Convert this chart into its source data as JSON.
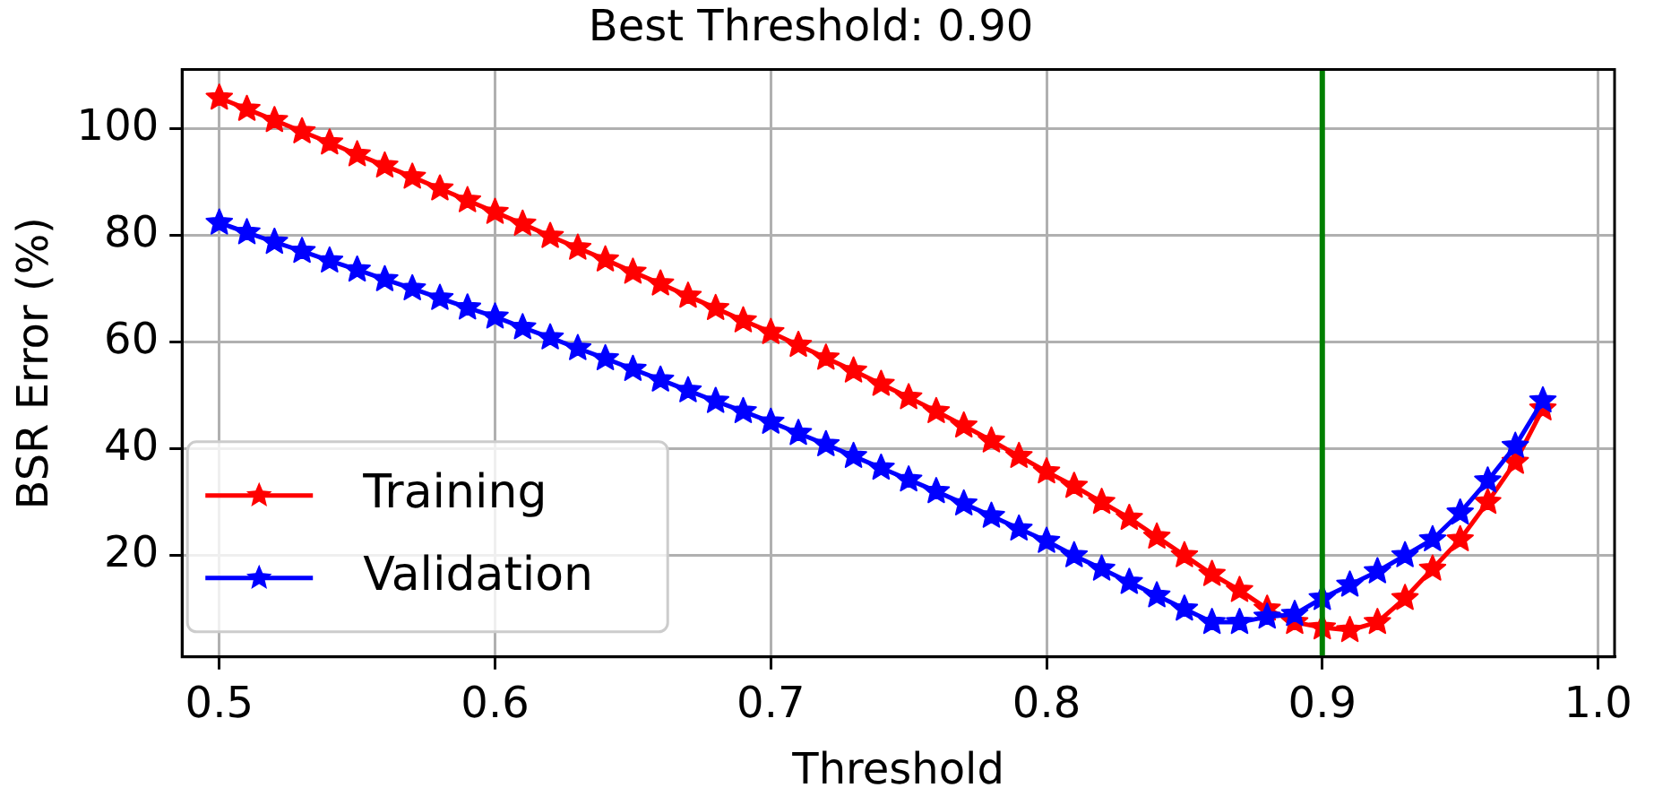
{
  "chart_data": {
    "type": "line",
    "title": "Best Threshold: 0.90",
    "xlabel": "Threshold",
    "ylabel": "BSR Error (%)",
    "x": [
      0.5,
      0.51,
      0.52,
      0.53,
      0.54,
      0.55,
      0.56,
      0.57,
      0.58,
      0.59,
      0.6,
      0.61,
      0.62,
      0.63,
      0.64,
      0.65,
      0.66,
      0.67,
      0.68,
      0.69,
      0.7,
      0.71,
      0.72,
      0.73,
      0.74,
      0.75,
      0.76,
      0.77,
      0.78,
      0.79,
      0.8,
      0.81,
      0.82,
      0.83,
      0.84,
      0.85,
      0.86,
      0.87,
      0.88,
      0.89,
      0.9,
      0.91,
      0.92,
      0.93,
      0.94,
      0.95,
      0.96,
      0.97,
      0.98
    ],
    "series": [
      {
        "name": "Training",
        "color": "#ff0000",
        "values": [
          105.7,
          103.6,
          101.5,
          99.4,
          97.3,
          95.1,
          93,
          90.9,
          88.7,
          86.5,
          84.3,
          82.1,
          79.8,
          77.6,
          75.4,
          73.1,
          70.9,
          68.6,
          66.3,
          64,
          61.8,
          59.4,
          57,
          54.6,
          52.1,
          49.6,
          47,
          44.3,
          41.5,
          38.6,
          35.7,
          33,
          30,
          27,
          23.5,
          20,
          16.5,
          13.5,
          10,
          7.5,
          6.5,
          6,
          7.5,
          12,
          17.5,
          23,
          30,
          37.5,
          47.5
        ]
      },
      {
        "name": "Validation",
        "color": "#0000ff",
        "values": [
          82.3,
          80.5,
          78.7,
          77,
          75.2,
          73.5,
          71.7,
          70,
          68.2,
          66.4,
          64.7,
          62.7,
          60.8,
          58.8,
          56.9,
          54.9,
          52.9,
          50.9,
          48.9,
          47,
          45,
          42.9,
          40.8,
          38.6,
          36.4,
          34.2,
          32,
          29.7,
          27.4,
          25,
          22.7,
          20,
          17.5,
          15,
          12.5,
          10,
          7.5,
          7.5,
          8.5,
          9,
          12,
          14.5,
          17,
          20,
          23,
          28,
          34,
          40.5,
          49
        ]
      }
    ],
    "xlim": [
      0.4865,
      1.006
    ],
    "xticks": [
      0.5,
      0.6,
      0.7,
      0.8,
      0.9,
      {
        "value": 1.0,
        "label": "1.0"
      }
    ],
    "ylim": [
      1,
      111
    ],
    "yticks": [
      20,
      40,
      60,
      80,
      100
    ],
    "ref_lines": [
      {
        "axis": "x",
        "value": 0.9,
        "color": "#008000"
      }
    ],
    "grid": true,
    "legend": "bottom left",
    "marker": "star",
    "line_style": "solid"
  }
}
